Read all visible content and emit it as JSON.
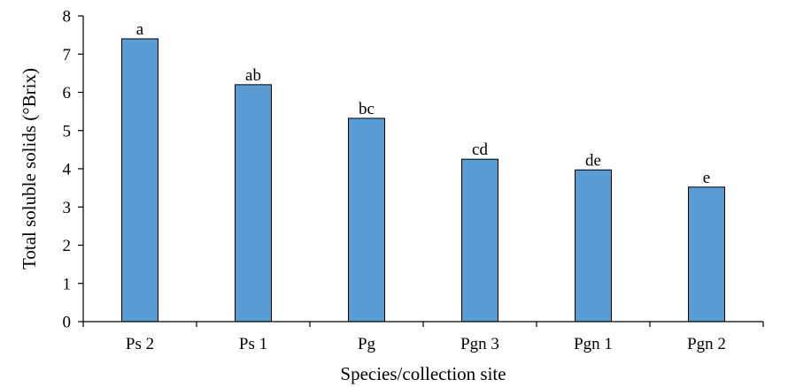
{
  "chart_data": {
    "type": "bar",
    "categories": [
      "Ps 2",
      "Ps 1",
      "Pg",
      "Pgn 3",
      "Pgn 1",
      "Pgn 2"
    ],
    "values": [
      7.4,
      6.2,
      5.32,
      4.25,
      3.97,
      3.52
    ],
    "data_labels": [
      "a",
      "ab",
      "bc",
      "cd",
      "de",
      "e"
    ],
    "title": "",
    "xlabel": "Species/collection site",
    "ylabel": "Total soluble solids (°Brix)",
    "ylim": [
      0,
      8
    ],
    "yticks": [
      "0",
      "1",
      "2",
      "3",
      "4",
      "5",
      "6",
      "7",
      "8"
    ],
    "grid": false,
    "legend": "none",
    "colors": {
      "bar_fill": "#5b9bd5",
      "bar_stroke": "#000000",
      "axis": "#000000"
    }
  }
}
